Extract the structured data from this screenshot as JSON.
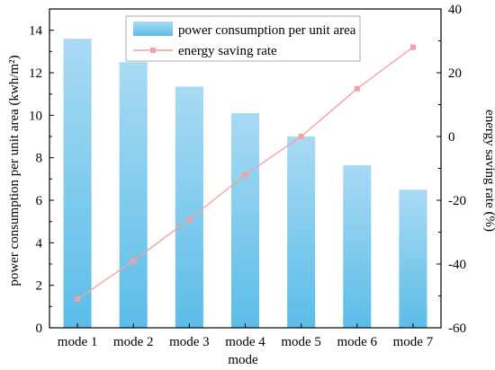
{
  "chart_data": {
    "type": "bar+line",
    "categories": [
      "mode 1",
      "mode 2",
      "mode 3",
      "mode 4",
      "mode 5",
      "mode 6",
      "mode 7"
    ],
    "series": [
      {
        "name": "power consumption per unit area",
        "type": "bar",
        "axis": "left",
        "values": [
          13.6,
          12.5,
          11.35,
          10.1,
          9.0,
          7.65,
          6.5
        ]
      },
      {
        "name": "energy saving rate",
        "type": "line",
        "axis": "right",
        "values": [
          -51,
          -39,
          -26,
          -12,
          0,
          15,
          28
        ]
      }
    ],
    "xlabel": "mode",
    "ylabel_left": "power consumption per unit area (kwh/m²)",
    "ylabel_right": "energy saving rate (%)",
    "ylim_left": [
      0,
      15
    ],
    "ylim_right": [
      -60,
      40
    ],
    "yticks_left": [
      "0",
      "2",
      "4",
      "6",
      "8",
      "10",
      "12",
      "14"
    ],
    "yticks_right": [
      "-60",
      "-40",
      "-20",
      "0",
      "20",
      "40"
    ],
    "legend_position": "top-center",
    "grid": false,
    "colors": {
      "bar_top": "#a9daf3",
      "bar_bottom": "#5bbde8",
      "line": "#f4a0a0",
      "marker": "#f4a0a0"
    }
  }
}
